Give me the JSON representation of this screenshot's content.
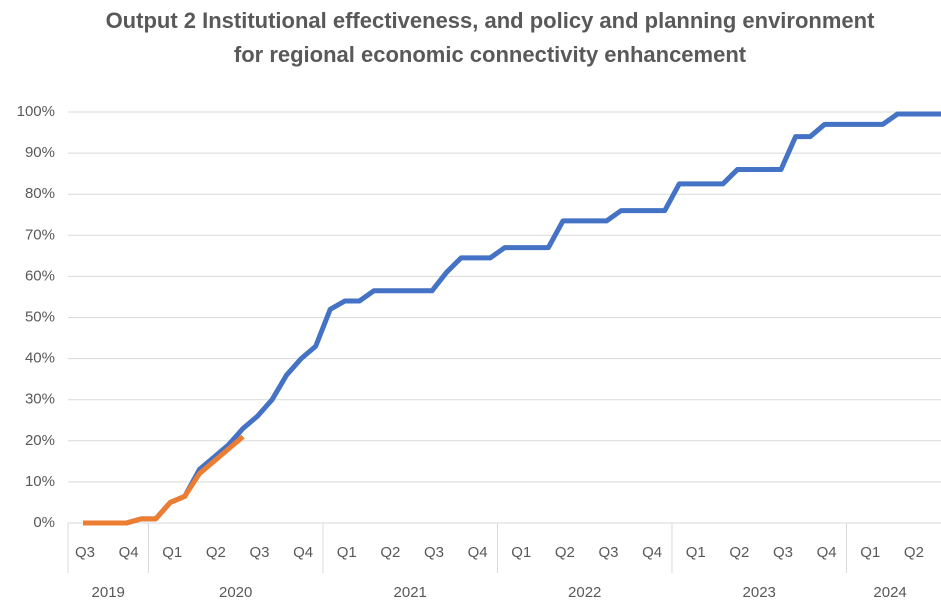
{
  "chart_data": {
    "type": "line",
    "title": "Output 2 Institutional effectiveness, and policy and planning environment for regional economic connectivity enhancement",
    "categories": [
      "Q3",
      null,
      null,
      "Q4",
      null,
      null,
      "Q1",
      null,
      null,
      "Q2",
      null,
      null,
      "Q3",
      null,
      null,
      "Q4",
      null,
      null,
      "Q1",
      null,
      null,
      "Q2",
      null,
      null,
      "Q3",
      null,
      null,
      "Q4",
      null,
      null,
      "Q1",
      null,
      null,
      "Q2",
      null,
      null,
      "Q3",
      null,
      null,
      "Q4",
      null,
      null,
      "Q1",
      null,
      null,
      "Q2",
      null,
      null,
      "Q3",
      null,
      null,
      "Q4",
      null,
      null,
      "Q1",
      null,
      null,
      "Q2",
      null,
      null
    ],
    "x_groups": [
      {
        "label": "2019",
        "quarters": 2
      },
      {
        "label": "2020",
        "quarters": 4
      },
      {
        "label": "2021",
        "quarters": 4
      },
      {
        "label": "2022",
        "quarters": 4
      },
      {
        "label": "2023",
        "quarters": 4
      },
      {
        "label": "2024",
        "quarters": 2
      }
    ],
    "series": [
      {
        "color": "#4472c4",
        "values": [
          0,
          0,
          0,
          0,
          1,
          1,
          5,
          6.5,
          13,
          16,
          19,
          23,
          26,
          30,
          36,
          40,
          43,
          52,
          54,
          54,
          56.5,
          56.5,
          56.5,
          56.5,
          56.5,
          61,
          64.5,
          64.5,
          64.5,
          67,
          67,
          67,
          67,
          73.5,
          73.5,
          73.5,
          73.5,
          76,
          76,
          76,
          76,
          82.5,
          82.5,
          82.5,
          82.5,
          86,
          86,
          86,
          86,
          94,
          94,
          97,
          97,
          97,
          97,
          97,
          99.5,
          99.5,
          99.5,
          99.5
        ]
      },
      {
        "color": "#ed7d31",
        "values": [
          0,
          0,
          0,
          0,
          1,
          1,
          5,
          6.5,
          12,
          15,
          18,
          21,
          null,
          null,
          null,
          null,
          null,
          null,
          null,
          null,
          null,
          null,
          null,
          null,
          null,
          null,
          null,
          null,
          null,
          null,
          null,
          null,
          null,
          null,
          null,
          null,
          null,
          null,
          null,
          null,
          null,
          null,
          null,
          null,
          null,
          null,
          null,
          null,
          null,
          null,
          null,
          null,
          null,
          null,
          null,
          null,
          null,
          null,
          null,
          null
        ]
      }
    ],
    "ylim": [
      0,
      100
    ],
    "yticks": [
      {
        "value": 0,
        "label": "0%"
      },
      {
        "value": 10,
        "label": "10%"
      },
      {
        "value": 20,
        "label": "20%"
      },
      {
        "value": 30,
        "label": "30%"
      },
      {
        "value": 40,
        "label": "40%"
      },
      {
        "value": 50,
        "label": "50%"
      },
      {
        "value": 60,
        "label": "60%"
      },
      {
        "value": 70,
        "label": "70%"
      },
      {
        "value": 80,
        "label": "80%"
      },
      {
        "value": 90,
        "label": "90%"
      },
      {
        "value": 100,
        "label": "100%"
      }
    ],
    "grid": true
  }
}
